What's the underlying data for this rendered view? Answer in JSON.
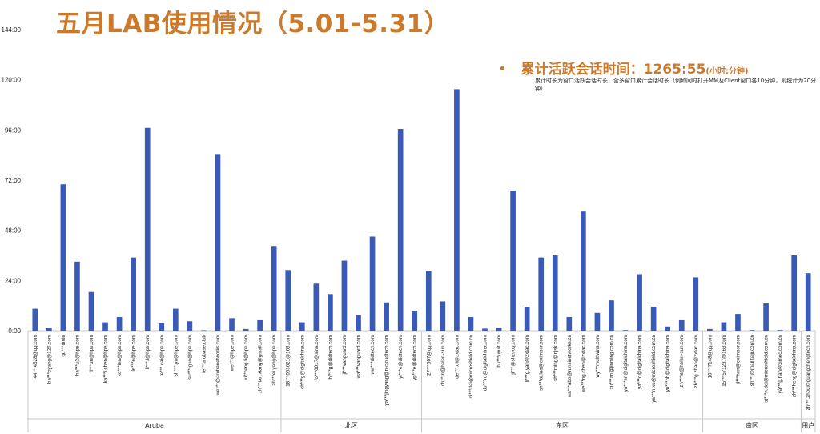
{
  "title": "五月LAB使用情况（5.01-5.31）",
  "summary": {
    "bullet": "•",
    "label": "累计活跃会话时间：",
    "value": "1265:55",
    "unit": "(小时:分钟)"
  },
  "note": "累计时长为窗口活跃会话时长，含多窗口累计会话时长（例如同时打开MM及Client窗口各10分钟，则统计为20分钟）",
  "colors": {
    "bar": "#3a5ab8",
    "title": "#cc7a2a",
    "axis": "#c8c8c8",
    "text": "#222222"
  },
  "chart_data": {
    "type": "bar",
    "title": "五月LAB使用情况（5.01-5.31）",
    "ylim": [
      0,
      144
    ],
    "y_ticks": [
      "0:00",
      "24:00",
      "48:00",
      "72:00",
      "96:00",
      "120:00",
      "144:00"
    ],
    "y_tick_values": [
      0,
      24,
      48,
      72,
      96,
      120,
      144
    ],
    "grid": false,
    "categories": [
      "44***4528@qq.com",
      "ba***oyang@126.com",
      "gu***dmin",
      "ha***u2@hpe.com",
      "ji***un@hpe.com",
      "ka***i.chen@hpe.com",
      "ko***ien@hpe.com",
      "le***e@hpe.com",
      "li***.l@hpe.com",
      "re***.cai@hpe.com",
      "sh***.yu@hpe.com",
      "su***.guo@hpe.com",
      "te***arubase.club",
      "we***@arubanetworks.com",
      "we***@hpe.com",
      "xi***eng.li@hpe.com",
      "zh***ian.xiang@gmail.com",
      "zh***ei.yang@hpe.com",
      "18***063621@163.com",
      "ch***g@digitalchina.com",
      "fo***0817@sina.com",
      "hf***g@didtech.com",
      "jf***vanguard.com",
      "wa***vanguard.com",
      "ww***didtech.com",
      "ya***jingyang@n-cloudtech.com",
      "yi***e@didtech.com",
      "yp***e@didtech.com",
      "27***607@qq.com",
      "ch***n@helen-sun.com",
      "de***.qi@zxtac.com",
      "di***dai@microshield.com.cn",
      "du***ru@digitalchina.com",
      "hu***uyuit.com",
      "ji***@shzooq.com",
      "li***g.yan@zxtac.com",
      "sh***ai.lao@eximpor.com",
      "sh***ming@njsk.com",
      "wa***abo@runsinetworks.cn",
      "we***ng.chen@zxtac.com",
      "wy***multiwins.com",
      "xu***an@jinming.com.cn",
      "ya***en@digitalchina.com",
      "ya***o@digitalchina.com",
      "ya***n.xu@microshield.com.cn",
      "yu***nh@digitalchina.com",
      "zh***le@helen-sun.com",
      "zh***g.zhao@zxtac.com",
      "10***7148@qq.com",
      "15***571237@163.com",
      "ji***hen@eximpor.com",
      "sh***@mail.taiji.com.cn",
      "st***n.dai@microshield.com.cn",
      "ya***g.han@ximec.com.cn",
      "zh***heng@digitalchina.com",
      "zh***.zhou@guangchengtech.com"
    ],
    "values": [
      10.5,
      1.5,
      70,
      33,
      18.5,
      4,
      6.5,
      35,
      97,
      3.5,
      10.5,
      4.5,
      0.2,
      84.5,
      6,
      0.8,
      5,
      40.5,
      29,
      4,
      22.5,
      17.5,
      33.5,
      7.5,
      45,
      13.5,
      96.5,
      9.5,
      28.5,
      14,
      115.5,
      6.5,
      1,
      1.5,
      67,
      11.5,
      35,
      36,
      6.5,
      57,
      8.5,
      14.5,
      0.3,
      27,
      11.5,
      2,
      5,
      25.5,
      0.8,
      4,
      8,
      0.3,
      13,
      0.3,
      36,
      27.5
    ],
    "groups": [
      {
        "name": "Aruba",
        "count": 18
      },
      {
        "name": "北区",
        "count": 10
      },
      {
        "name": "东区",
        "count": 20
      },
      {
        "name": "南区",
        "count": 7
      },
      {
        "name": "用户",
        "count": 1
      }
    ]
  }
}
